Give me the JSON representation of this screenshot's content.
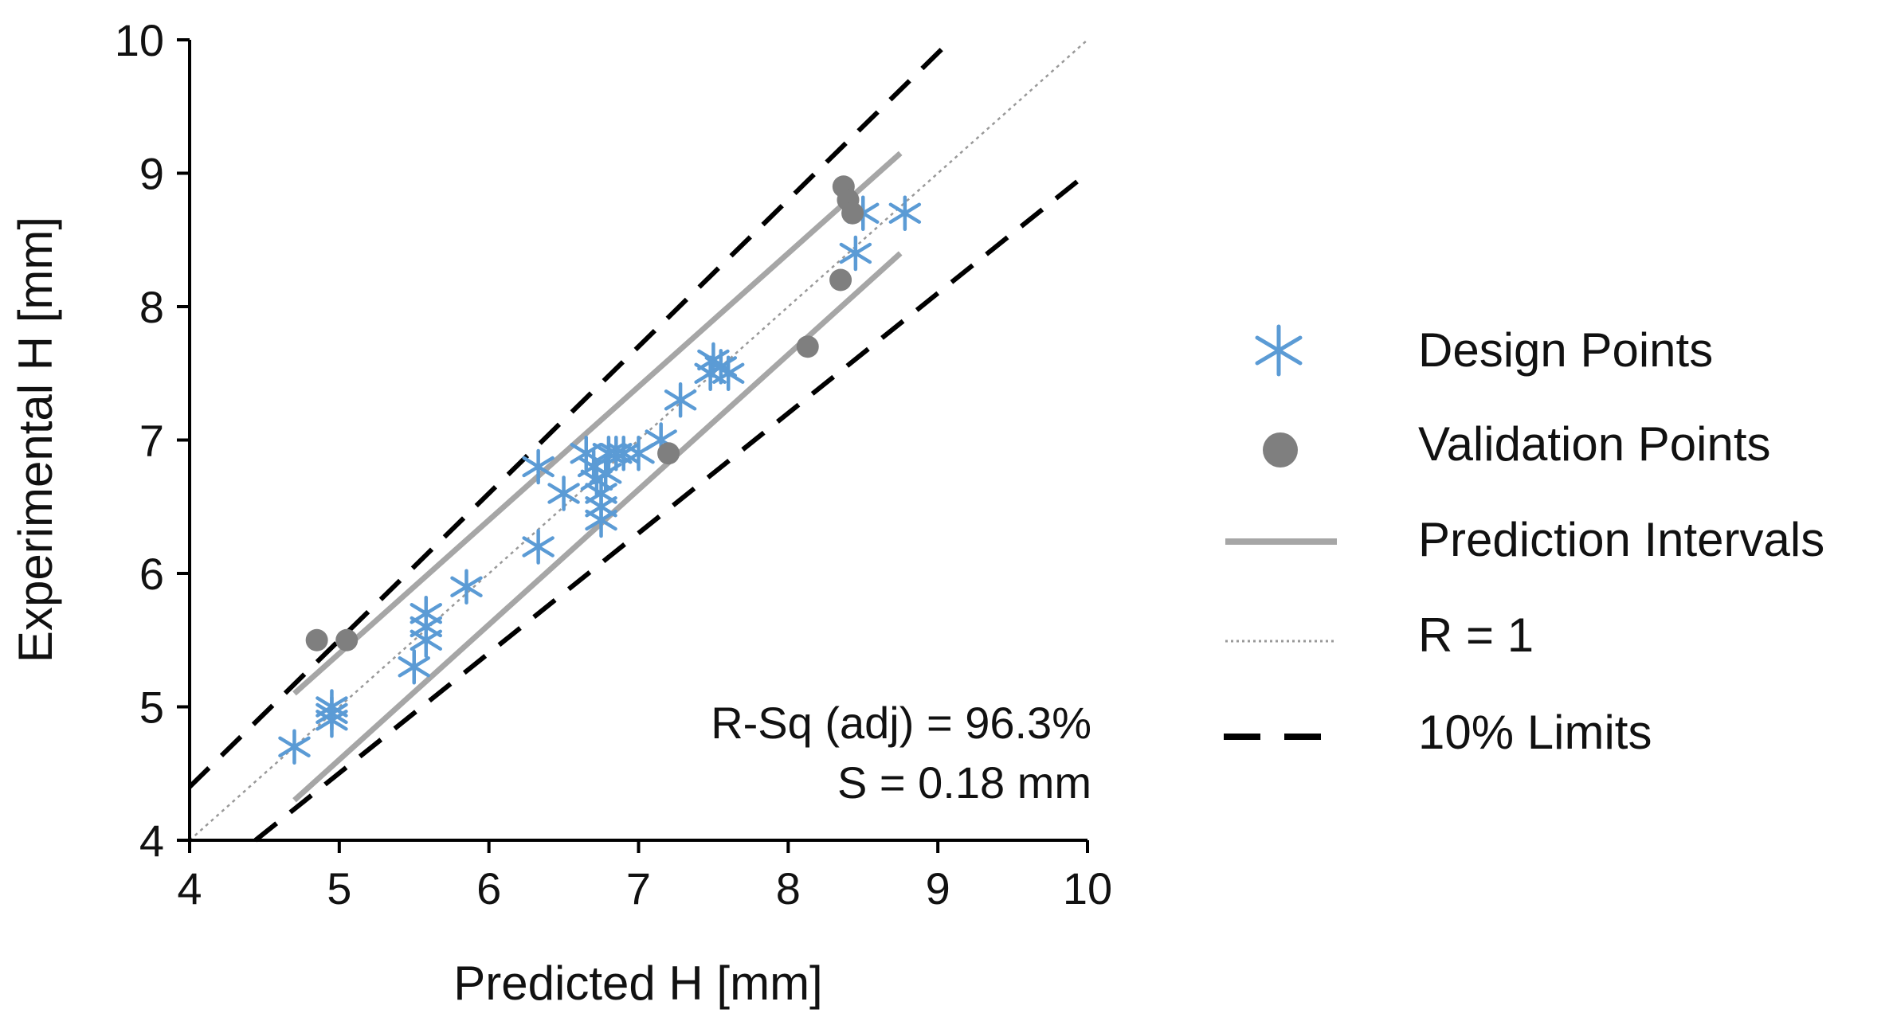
{
  "chart_data": {
    "type": "scatter",
    "xlabel": "Predicted H [mm]",
    "ylabel": "Experimental H [mm]",
    "xlim": [
      4,
      10
    ],
    "ylim": [
      4,
      10
    ],
    "xticks": [
      "4",
      "5",
      "6",
      "7",
      "8",
      "9",
      "10"
    ],
    "yticks": [
      "4",
      "5",
      "6",
      "7",
      "8",
      "9",
      "10"
    ],
    "annotations": [
      "R-Sq (adj) = 96.3%",
      "S = 0.18 mm"
    ],
    "legend_position": "right",
    "colors": {
      "design": "#5b9bd5",
      "validation": "#7f7f7f",
      "interval": "#a6a6a6",
      "r1": "#999999",
      "limits": "#000000"
    },
    "series": [
      {
        "name": "Design Points",
        "kind": "asterisk",
        "points": [
          [
            4.7,
            4.7
          ],
          [
            4.95,
            5.0
          ],
          [
            4.95,
            4.9
          ],
          [
            4.95,
            4.95
          ],
          [
            5.5,
            5.3
          ],
          [
            5.58,
            5.5
          ],
          [
            5.58,
            5.6
          ],
          [
            5.58,
            5.7
          ],
          [
            5.85,
            5.9
          ],
          [
            6.33,
            6.8
          ],
          [
            6.33,
            6.2
          ],
          [
            6.5,
            6.6
          ],
          [
            6.65,
            6.9
          ],
          [
            6.7,
            6.8
          ],
          [
            6.72,
            6.7
          ],
          [
            6.75,
            6.6
          ],
          [
            6.75,
            6.5
          ],
          [
            6.75,
            6.4
          ],
          [
            6.78,
            6.75
          ],
          [
            6.8,
            6.9
          ],
          [
            6.85,
            6.9
          ],
          [
            6.9,
            6.9
          ],
          [
            7.0,
            6.9
          ],
          [
            7.15,
            7.0
          ],
          [
            7.28,
            7.3
          ],
          [
            7.48,
            7.5
          ],
          [
            7.5,
            7.6
          ],
          [
            7.55,
            7.55
          ],
          [
            7.6,
            7.5
          ],
          [
            8.45,
            8.4
          ],
          [
            8.5,
            8.7
          ],
          [
            8.78,
            8.7
          ]
        ]
      },
      {
        "name": "Validation Points",
        "kind": "dot",
        "points": [
          [
            4.85,
            5.5
          ],
          [
            5.05,
            5.5
          ],
          [
            7.2,
            6.9
          ],
          [
            8.13,
            7.7
          ],
          [
            8.35,
            8.2
          ],
          [
            8.37,
            8.9
          ],
          [
            8.4,
            8.8
          ],
          [
            8.43,
            8.7
          ]
        ]
      },
      {
        "name": "Prediction Intervals",
        "kind": "line",
        "lines": [
          [
            [
              4.7,
              5.1
            ],
            [
              8.75,
              9.15
            ]
          ],
          [
            [
              4.7,
              4.3
            ],
            [
              8.75,
              8.4
            ]
          ]
        ]
      },
      {
        "name": "R = 1",
        "kind": "dotted",
        "lines": [
          [
            [
              4,
              4
            ],
            [
              10,
              10
            ]
          ]
        ]
      },
      {
        "name": "10% Limits",
        "kind": "dashed",
        "lines": [
          [
            [
              4,
              4.4
            ],
            [
              9.09,
              10
            ]
          ],
          [
            [
              4.44,
              4
            ],
            [
              10,
              9
            ]
          ]
        ]
      }
    ]
  }
}
